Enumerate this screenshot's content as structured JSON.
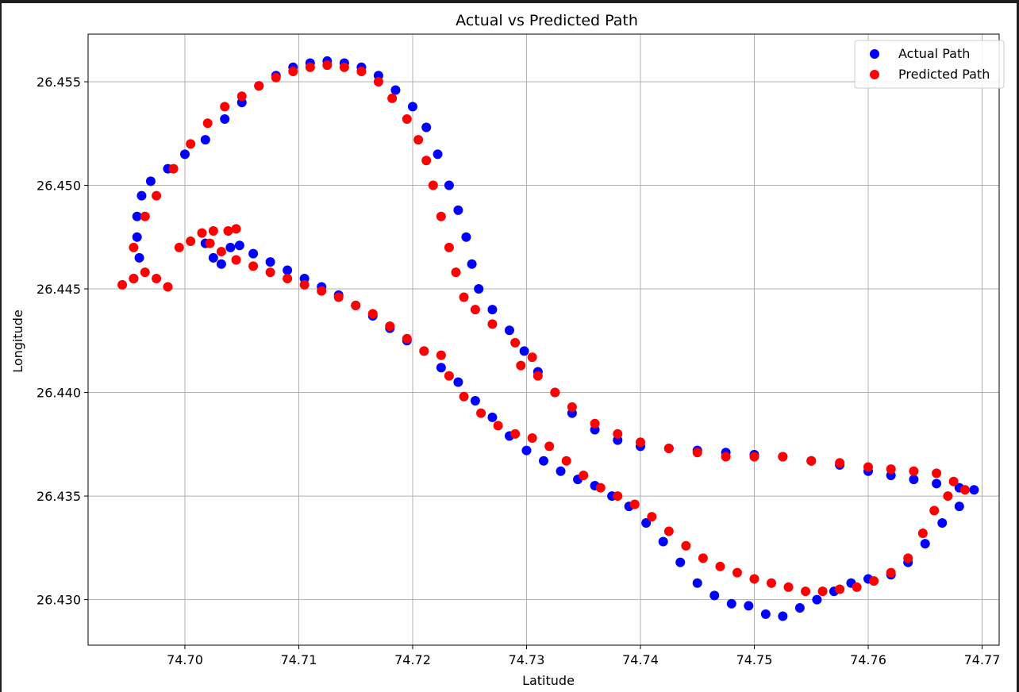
{
  "chart_data": {
    "type": "scatter",
    "title": "Actual vs Predicted Path",
    "xlabel": "Latitude",
    "ylabel": "Longitude",
    "xlim": [
      74.6915,
      74.7715
    ],
    "ylim": [
      26.4278,
      26.4573
    ],
    "xticks": [
      "74.70",
      "74.71",
      "74.72",
      "74.73",
      "74.74",
      "74.75",
      "74.76",
      "74.77"
    ],
    "yticks": [
      "26.430",
      "26.435",
      "26.440",
      "26.445",
      "26.450",
      "26.455"
    ],
    "grid": true,
    "legend_position": "top-right",
    "series": [
      {
        "name": "Actual Path",
        "color": "#0000ff",
        "points": [
          [
            74.6955,
            26.4455
          ],
          [
            74.696,
            26.4465
          ],
          [
            74.6958,
            26.4475
          ],
          [
            74.6958,
            26.4485
          ],
          [
            74.6962,
            26.4495
          ],
          [
            74.697,
            26.4502
          ],
          [
            74.6985,
            26.4508
          ],
          [
            74.7,
            26.4515
          ],
          [
            74.7018,
            26.4522
          ],
          [
            74.7035,
            26.4532
          ],
          [
            74.705,
            26.454
          ],
          [
            74.7065,
            26.4548
          ],
          [
            74.708,
            26.4553
          ],
          [
            74.7095,
            26.4557
          ],
          [
            74.711,
            26.4559
          ],
          [
            74.7125,
            26.456
          ],
          [
            74.714,
            26.4559
          ],
          [
            74.7155,
            26.4557
          ],
          [
            74.717,
            26.4553
          ],
          [
            74.7185,
            26.4546
          ],
          [
            74.72,
            26.4538
          ],
          [
            74.7212,
            26.4528
          ],
          [
            74.7222,
            26.4515
          ],
          [
            74.7232,
            26.45
          ],
          [
            74.724,
            26.4488
          ],
          [
            74.7247,
            26.4475
          ],
          [
            74.7252,
            26.4462
          ],
          [
            74.7258,
            26.445
          ],
          [
            74.727,
            26.444
          ],
          [
            74.7285,
            26.443
          ],
          [
            74.7298,
            26.442
          ],
          [
            74.731,
            26.441
          ],
          [
            74.7325,
            26.44
          ],
          [
            74.734,
            26.439
          ],
          [
            74.736,
            26.4382
          ],
          [
            74.738,
            26.4377
          ],
          [
            74.74,
            26.4374
          ],
          [
            74.7425,
            26.4373
          ],
          [
            74.745,
            26.4372
          ],
          [
            74.7475,
            26.4371
          ],
          [
            74.75,
            26.437
          ],
          [
            74.7525,
            26.4369
          ],
          [
            74.755,
            26.4367
          ],
          [
            74.7575,
            26.4365
          ],
          [
            74.76,
            26.4362
          ],
          [
            74.762,
            26.436
          ],
          [
            74.764,
            26.4358
          ],
          [
            74.766,
            26.4356
          ],
          [
            74.768,
            26.4354
          ],
          [
            74.7693,
            26.4353
          ],
          [
            74.768,
            26.4345
          ],
          [
            74.7665,
            26.4337
          ],
          [
            74.765,
            26.4327
          ],
          [
            74.7635,
            26.4318
          ],
          [
            74.762,
            26.4312
          ],
          [
            74.76,
            26.431
          ],
          [
            74.7585,
            26.4308
          ],
          [
            74.757,
            26.4304
          ],
          [
            74.7555,
            26.43
          ],
          [
            74.754,
            26.4296
          ],
          [
            74.7525,
            26.4292
          ],
          [
            74.751,
            26.4293
          ],
          [
            74.7495,
            26.4297
          ],
          [
            74.748,
            26.4298
          ],
          [
            74.7465,
            26.4302
          ],
          [
            74.745,
            26.4308
          ],
          [
            74.7435,
            26.4318
          ],
          [
            74.742,
            26.4328
          ],
          [
            74.7405,
            26.4337
          ],
          [
            74.739,
            26.4345
          ],
          [
            74.7375,
            26.435
          ],
          [
            74.736,
            26.4355
          ],
          [
            74.7345,
            26.4358
          ],
          [
            74.733,
            26.4362
          ],
          [
            74.7315,
            26.4367
          ],
          [
            74.73,
            26.4372
          ],
          [
            74.7285,
            26.4379
          ],
          [
            74.727,
            26.4388
          ],
          [
            74.7255,
            26.4396
          ],
          [
            74.724,
            26.4405
          ],
          [
            74.7225,
            26.4412
          ],
          [
            74.721,
            26.442
          ],
          [
            74.7195,
            26.4425
          ],
          [
            74.718,
            26.4431
          ],
          [
            74.7165,
            26.4437
          ],
          [
            74.715,
            26.4442
          ],
          [
            74.7135,
            26.4447
          ],
          [
            74.712,
            26.4451
          ],
          [
            74.7105,
            26.4455
          ],
          [
            74.709,
            26.4459
          ],
          [
            74.7075,
            26.4463
          ],
          [
            74.706,
            26.4467
          ],
          [
            74.7048,
            26.4471
          ],
          [
            74.704,
            26.447
          ],
          [
            74.7032,
            26.4462
          ],
          [
            74.7025,
            26.4465
          ],
          [
            74.7018,
            26.4472
          ]
        ]
      },
      {
        "name": "Predicted Path",
        "color": "#ff0000",
        "points": [
          [
            74.6945,
            26.4452
          ],
          [
            74.6955,
            26.4455
          ],
          [
            74.6965,
            26.4458
          ],
          [
            74.6975,
            26.4455
          ],
          [
            74.6985,
            26.4451
          ],
          [
            74.6955,
            26.447
          ],
          [
            74.6965,
            26.4485
          ],
          [
            74.6975,
            26.4495
          ],
          [
            74.699,
            26.4508
          ],
          [
            74.7005,
            26.452
          ],
          [
            74.702,
            26.453
          ],
          [
            74.7035,
            26.4538
          ],
          [
            74.705,
            26.4543
          ],
          [
            74.7065,
            26.4548
          ],
          [
            74.708,
            26.4552
          ],
          [
            74.7095,
            26.4555
          ],
          [
            74.711,
            26.4557
          ],
          [
            74.7125,
            26.4558
          ],
          [
            74.714,
            26.4557
          ],
          [
            74.7155,
            26.4555
          ],
          [
            74.717,
            26.455
          ],
          [
            74.7182,
            26.4542
          ],
          [
            74.7195,
            26.4532
          ],
          [
            74.7205,
            26.4522
          ],
          [
            74.7212,
            26.4512
          ],
          [
            74.7218,
            26.45
          ],
          [
            74.7225,
            26.4485
          ],
          [
            74.7232,
            26.447
          ],
          [
            74.7238,
            26.4458
          ],
          [
            74.7245,
            26.4446
          ],
          [
            74.7255,
            26.444
          ],
          [
            74.727,
            26.4433
          ],
          [
            74.729,
            26.4424
          ],
          [
            74.7305,
            26.4417
          ],
          [
            74.7295,
            26.4413
          ],
          [
            74.731,
            26.4408
          ],
          [
            74.7325,
            26.44
          ],
          [
            74.734,
            26.4393
          ],
          [
            74.736,
            26.4385
          ],
          [
            74.738,
            26.438
          ],
          [
            74.74,
            26.4376
          ],
          [
            74.7425,
            26.4373
          ],
          [
            74.745,
            26.4371
          ],
          [
            74.7475,
            26.4369
          ],
          [
            74.75,
            26.4369
          ],
          [
            74.7525,
            26.4369
          ],
          [
            74.755,
            26.4367
          ],
          [
            74.7575,
            26.4366
          ],
          [
            74.76,
            26.4364
          ],
          [
            74.762,
            26.4363
          ],
          [
            74.764,
            26.4362
          ],
          [
            74.766,
            26.4361
          ],
          [
            74.7675,
            26.4357
          ],
          [
            74.7685,
            26.4353
          ],
          [
            74.767,
            26.435
          ],
          [
            74.7658,
            26.4343
          ],
          [
            74.7648,
            26.4332
          ],
          [
            74.7635,
            26.432
          ],
          [
            74.762,
            26.4313
          ],
          [
            74.7605,
            26.4309
          ],
          [
            74.759,
            26.4306
          ],
          [
            74.7575,
            26.4305
          ],
          [
            74.756,
            26.4304
          ],
          [
            74.7545,
            26.4304
          ],
          [
            74.753,
            26.4306
          ],
          [
            74.7515,
            26.4308
          ],
          [
            74.75,
            26.431
          ],
          [
            74.7485,
            26.4313
          ],
          [
            74.747,
            26.4316
          ],
          [
            74.7455,
            26.432
          ],
          [
            74.744,
            26.4326
          ],
          [
            74.7425,
            26.4333
          ],
          [
            74.741,
            26.434
          ],
          [
            74.7395,
            26.4346
          ],
          [
            74.738,
            26.435
          ],
          [
            74.7365,
            26.4354
          ],
          [
            74.735,
            26.436
          ],
          [
            74.7335,
            26.4367
          ],
          [
            74.732,
            26.4374
          ],
          [
            74.7305,
            26.4378
          ],
          [
            74.729,
            26.438
          ],
          [
            74.7275,
            26.4384
          ],
          [
            74.726,
            26.439
          ],
          [
            74.7245,
            26.4398
          ],
          [
            74.7232,
            26.4408
          ],
          [
            74.7225,
            26.4418
          ],
          [
            74.721,
            26.442
          ],
          [
            74.7195,
            26.4426
          ],
          [
            74.718,
            26.4432
          ],
          [
            74.7165,
            26.4438
          ],
          [
            74.715,
            26.4442
          ],
          [
            74.7135,
            26.4446
          ],
          [
            74.712,
            26.4449
          ],
          [
            74.7105,
            26.4452
          ],
          [
            74.709,
            26.4455
          ],
          [
            74.7075,
            26.4458
          ],
          [
            74.706,
            26.4461
          ],
          [
            74.7045,
            26.4464
          ],
          [
            74.7032,
            26.4468
          ],
          [
            74.7022,
            26.4472
          ],
          [
            74.7015,
            26.4477
          ],
          [
            74.7025,
            26.4478
          ],
          [
            74.7038,
            26.4478
          ],
          [
            74.7045,
            26.4479
          ],
          [
            74.7005,
            26.4473
          ],
          [
            74.6995,
            26.447
          ]
        ]
      }
    ]
  }
}
